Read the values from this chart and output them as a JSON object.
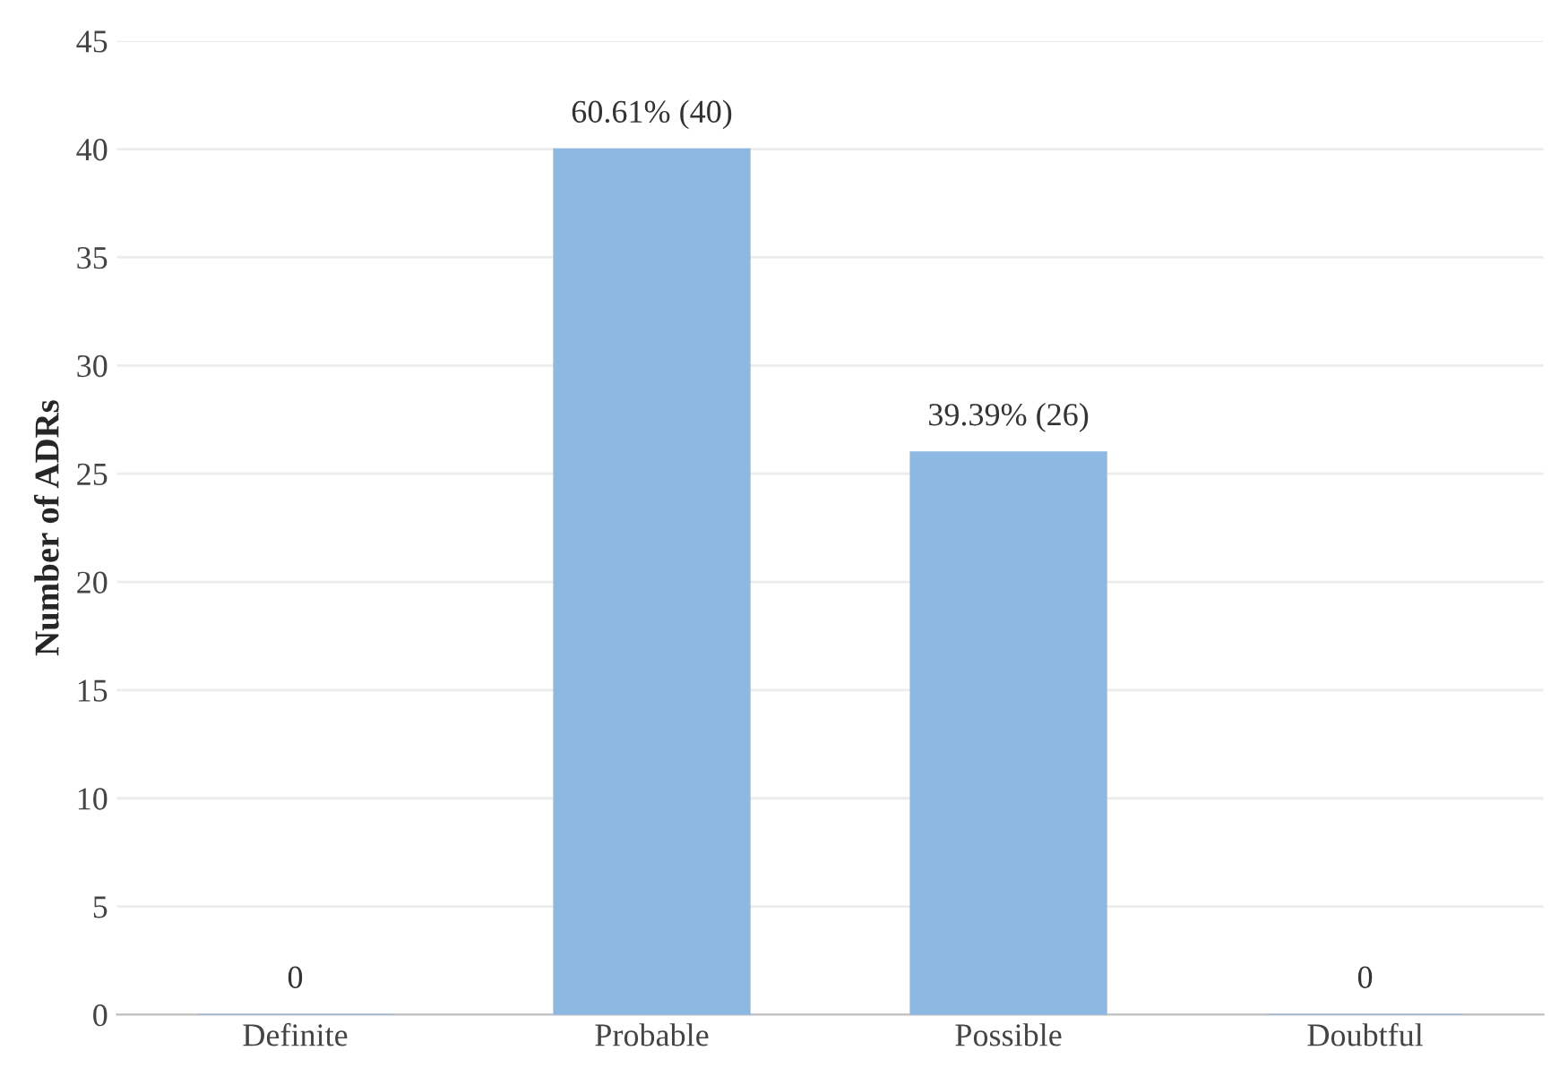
{
  "chart_data": {
    "type": "bar",
    "ylabel": "Number of ADRs",
    "categories": [
      "Definite",
      "Probable",
      "Possible",
      "Doubtful"
    ],
    "values": [
      0,
      40,
      26,
      0
    ],
    "value_labels": [
      "0",
      "60.61% (40)",
      "39.39% (26)",
      "0"
    ],
    "color": "#8db8e2",
    "ylim": [
      0,
      45
    ],
    "yticks": [
      0,
      5,
      10,
      15,
      20,
      25,
      30,
      35,
      40,
      45
    ],
    "grid": "y"
  }
}
